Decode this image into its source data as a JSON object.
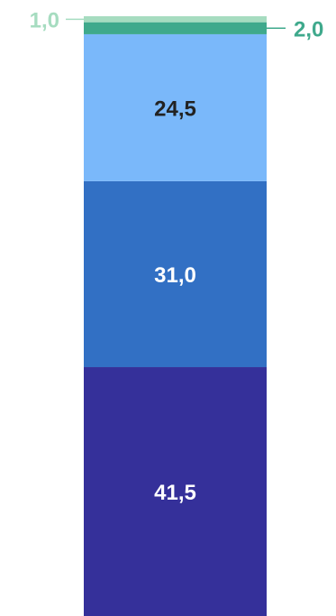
{
  "chart_data": {
    "type": "bar",
    "stacked": true,
    "categories": [
      ""
    ],
    "series": [
      {
        "values": [
          41.5
        ],
        "color": "#35309a",
        "label": "41,5",
        "label_color": "#ffffff"
      },
      {
        "values": [
          31.0
        ],
        "color": "#3270c4",
        "label": "31,0",
        "label_color": "#ffffff"
      },
      {
        "values": [
          24.5
        ],
        "color": "#7ab8fa",
        "label": "24,5",
        "label_color": "#222222"
      },
      {
        "values": [
          2.0
        ],
        "color": "#3fa98c",
        "label": "2,0",
        "label_color": "#3fa98c",
        "label_placement": "outside-right"
      },
      {
        "values": [
          1.0
        ],
        "color": "#a6dcc0",
        "label": "1,0",
        "label_color": "#a6dcc0",
        "label_placement": "outside-left"
      }
    ],
    "ylim": [
      0,
      100
    ],
    "grid": false,
    "legend": "none"
  }
}
